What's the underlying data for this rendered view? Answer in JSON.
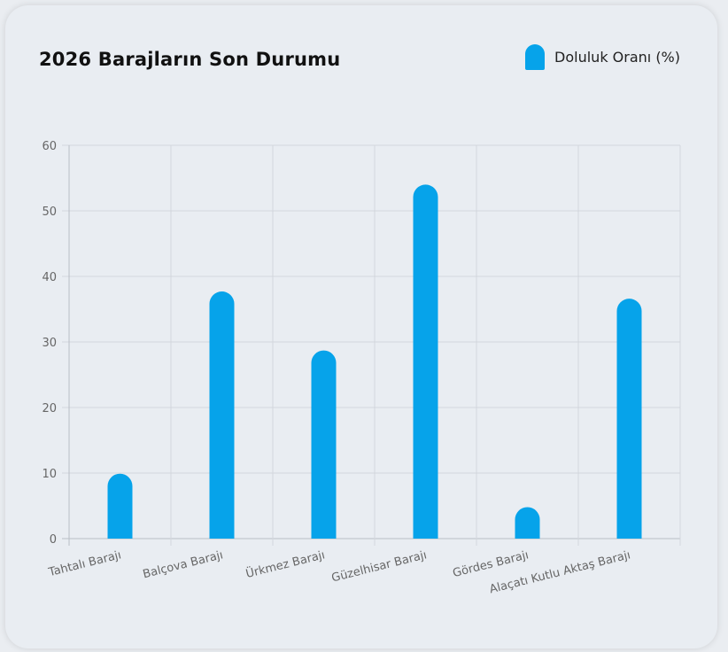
{
  "chart_data": {
    "type": "bar",
    "title": "2026 Barajların Son Durumu",
    "categories": [
      "Tahtalı Barajı",
      "Balçova Barajı",
      "Ürkmez Barajı",
      "Güzelhisar Barajı",
      "Gördes Barajı",
      "Alaçatı Kutlu Aktaş Barajı"
    ],
    "series": [
      {
        "name": "Doluluk Oranı (%)",
        "values": [
          9.9,
          37.7,
          28.7,
          54.0,
          4.8,
          36.6
        ],
        "color": "#06a3ea"
      }
    ],
    "ylim": [
      0,
      60
    ],
    "yticks": [
      "0",
      "10",
      "20",
      "30",
      "40",
      "50",
      "60"
    ],
    "grid": true,
    "legend_position": "top-right"
  }
}
